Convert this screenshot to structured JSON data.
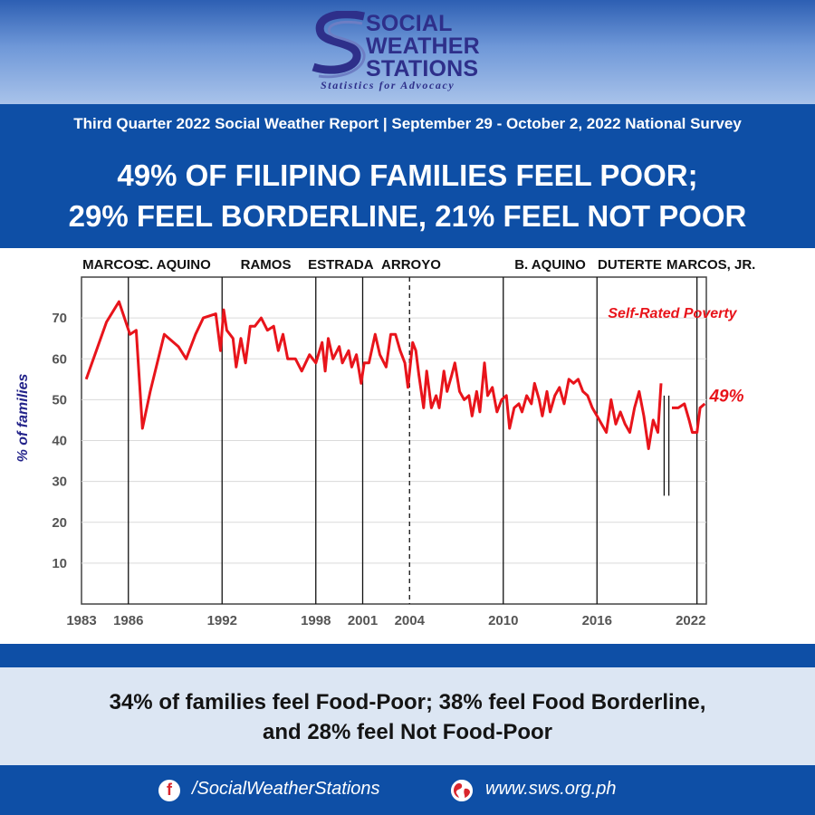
{
  "header": {
    "logo_lines": [
      "SOCIAL",
      "WEATHER",
      "STATIONS"
    ],
    "tagline": "Statistics for Advocacy"
  },
  "banner": {
    "subtitle": "Third Quarter 2022 Social Weather Report  |  September 29 - October 2, 2022 National Survey",
    "headline_1": "49% OF FILIPINO FAMILIES FEEL POOR;",
    "headline_2": "29% FEEL BORDERLINE, 21% FEEL NOT POOR"
  },
  "note": {
    "line_1": "34% of families feel Food-Poor; 38% feel Food Borderline,",
    "line_2": "and 28% feel Not Food-Poor"
  },
  "footer": {
    "facebook_icon": "facebook-icon",
    "facebook": "/SocialWeatherStations",
    "web_icon": "globe-icon",
    "website": "www.sws.org.ph"
  },
  "colors": {
    "brand_blue": "#0e4fa6",
    "series_red": "#e8141b",
    "label_navy": "#23238a",
    "note_bg": "#dce6f3"
  },
  "chart_data": {
    "type": "line",
    "title": "",
    "xlabel": "",
    "ylabel": "% of families",
    "xlim": [
      1983,
      2023
    ],
    "ylim": [
      0,
      80
    ],
    "yticks": [
      10,
      20,
      30,
      40,
      50,
      60,
      70
    ],
    "xticks": [
      1983,
      1986,
      1992,
      1998,
      2001,
      2004,
      2010,
      2016,
      2022
    ],
    "grid": true,
    "era_dividers": [
      1986,
      1992,
      1998,
      2001,
      2010,
      2016,
      2022.4
    ],
    "dashed_divider": 2004,
    "extra_lines": [
      {
        "x": 2020.3,
        "from": 26.5,
        "to": 51
      },
      {
        "x": 2020.6,
        "from": 26.5,
        "to": 51
      }
    ],
    "eras": [
      {
        "label": "MARCOS",
        "x": 1985.0
      },
      {
        "label": "C. AQUINO",
        "x": 1989.0
      },
      {
        "label": "RAMOS",
        "x": 1994.8
      },
      {
        "label": "ESTRADA",
        "x": 1999.6
      },
      {
        "label": "ARROYO",
        "x": 2004.1
      },
      {
        "label": "B. AQUINO",
        "x": 2013.0
      },
      {
        "label": "DUTERTE",
        "x": 2018.1
      },
      {
        "label": "MARCOS, JR.",
        "x": 2023.3
      }
    ],
    "annotations": [
      {
        "text": "Self-Rated Poverty",
        "x": 2016.7,
        "y": 70
      },
      {
        "text": "49%",
        "x": 2023.2,
        "y": 49.5
      }
    ],
    "series": [
      {
        "name": "Self-Rated Poverty",
        "color": "#e8141b",
        "segments": [
          [
            [
              1983.3,
              55
            ],
            [
              1984.6,
              69
            ],
            [
              1985.4,
              74
            ],
            [
              1986.1,
              66
            ],
            [
              1986.5,
              67
            ],
            [
              1986.9,
              43
            ],
            [
              1987.4,
              52
            ],
            [
              1988.3,
              66
            ],
            [
              1989.2,
              63
            ],
            [
              1989.7,
              60
            ],
            [
              1990.3,
              66
            ],
            [
              1990.8,
              70
            ],
            [
              1991.6,
              71
            ],
            [
              1991.9,
              62
            ],
            [
              1992.1,
              72
            ],
            [
              1992.3,
              67
            ],
            [
              1992.7,
              65
            ],
            [
              1992.9,
              58
            ],
            [
              1993.2,
              65
            ],
            [
              1993.5,
              59
            ],
            [
              1993.8,
              68
            ],
            [
              1994.1,
              68
            ],
            [
              1994.5,
              70
            ],
            [
              1994.9,
              67
            ],
            [
              1995.3,
              68
            ],
            [
              1995.6,
              62
            ],
            [
              1995.9,
              66
            ],
            [
              1996.2,
              60
            ],
            [
              1996.7,
              60
            ],
            [
              1997.1,
              57
            ],
            [
              1997.6,
              61
            ],
            [
              1998.0,
              59
            ],
            [
              1998.4,
              64
            ],
            [
              1998.6,
              57
            ],
            [
              1998.8,
              65
            ],
            [
              1999.1,
              60
            ],
            [
              1999.5,
              63
            ],
            [
              1999.7,
              59
            ],
            [
              2000.1,
              62
            ],
            [
              2000.3,
              58
            ],
            [
              2000.6,
              61
            ],
            [
              2000.9,
              54
            ],
            [
              2001.1,
              59
            ],
            [
              2001.4,
              59
            ],
            [
              2001.8,
              66
            ],
            [
              2002.1,
              61
            ],
            [
              2002.5,
              58
            ],
            [
              2002.8,
              66
            ],
            [
              2003.1,
              66
            ],
            [
              2003.4,
              62
            ],
            [
              2003.7,
              59
            ],
            [
              2003.9,
              53
            ],
            [
              2004.2,
              64
            ],
            [
              2004.4,
              62
            ],
            [
              2004.6,
              56
            ],
            [
              2004.9,
              48
            ],
            [
              2005.1,
              57
            ],
            [
              2005.4,
              48
            ],
            [
              2005.7,
              51
            ],
            [
              2005.9,
              48
            ],
            [
              2006.2,
              57
            ],
            [
              2006.4,
              52
            ],
            [
              2006.7,
              56
            ],
            [
              2006.9,
              59
            ],
            [
              2007.2,
              52
            ],
            [
              2007.5,
              50
            ],
            [
              2007.8,
              51
            ],
            [
              2008.0,
              46
            ],
            [
              2008.3,
              52
            ],
            [
              2008.5,
              47
            ],
            [
              2008.8,
              59
            ],
            [
              2009.0,
              51
            ],
            [
              2009.3,
              53
            ],
            [
              2009.6,
              47
            ],
            [
              2009.9,
              50
            ],
            [
              2010.2,
              51
            ],
            [
              2010.4,
              43
            ],
            [
              2010.7,
              48
            ],
            [
              2011.0,
              49
            ],
            [
              2011.2,
              47
            ],
            [
              2011.5,
              51
            ],
            [
              2011.8,
              49
            ],
            [
              2012.0,
              54
            ],
            [
              2012.3,
              50
            ],
            [
              2012.5,
              46
            ],
            [
              2012.8,
              52
            ],
            [
              2013.0,
              47
            ],
            [
              2013.3,
              51
            ],
            [
              2013.6,
              53
            ],
            [
              2013.9,
              49
            ],
            [
              2014.2,
              55
            ],
            [
              2014.5,
              54
            ],
            [
              2014.8,
              55
            ],
            [
              2015.1,
              52
            ],
            [
              2015.4,
              51
            ],
            [
              2015.7,
              48
            ],
            [
              2016.0,
              46
            ],
            [
              2016.3,
              44
            ],
            [
              2016.6,
              42
            ],
            [
              2016.9,
              50
            ],
            [
              2017.2,
              44
            ],
            [
              2017.5,
              47
            ],
            [
              2017.8,
              44
            ],
            [
              2018.1,
              42
            ],
            [
              2018.4,
              48
            ],
            [
              2018.7,
              52
            ],
            [
              2019.0,
              46
            ],
            [
              2019.3,
              38
            ],
            [
              2019.6,
              45
            ],
            [
              2019.9,
              42
            ],
            [
              2020.1,
              54
            ]
          ],
          [
            [
              2020.8,
              48
            ],
            [
              2021.2,
              48
            ],
            [
              2021.6,
              49
            ],
            [
              2021.9,
              45
            ],
            [
              2022.1,
              42
            ],
            [
              2022.4,
              42
            ],
            [
              2022.6,
              48
            ],
            [
              2022.9,
              49
            ]
          ]
        ]
      }
    ]
  }
}
